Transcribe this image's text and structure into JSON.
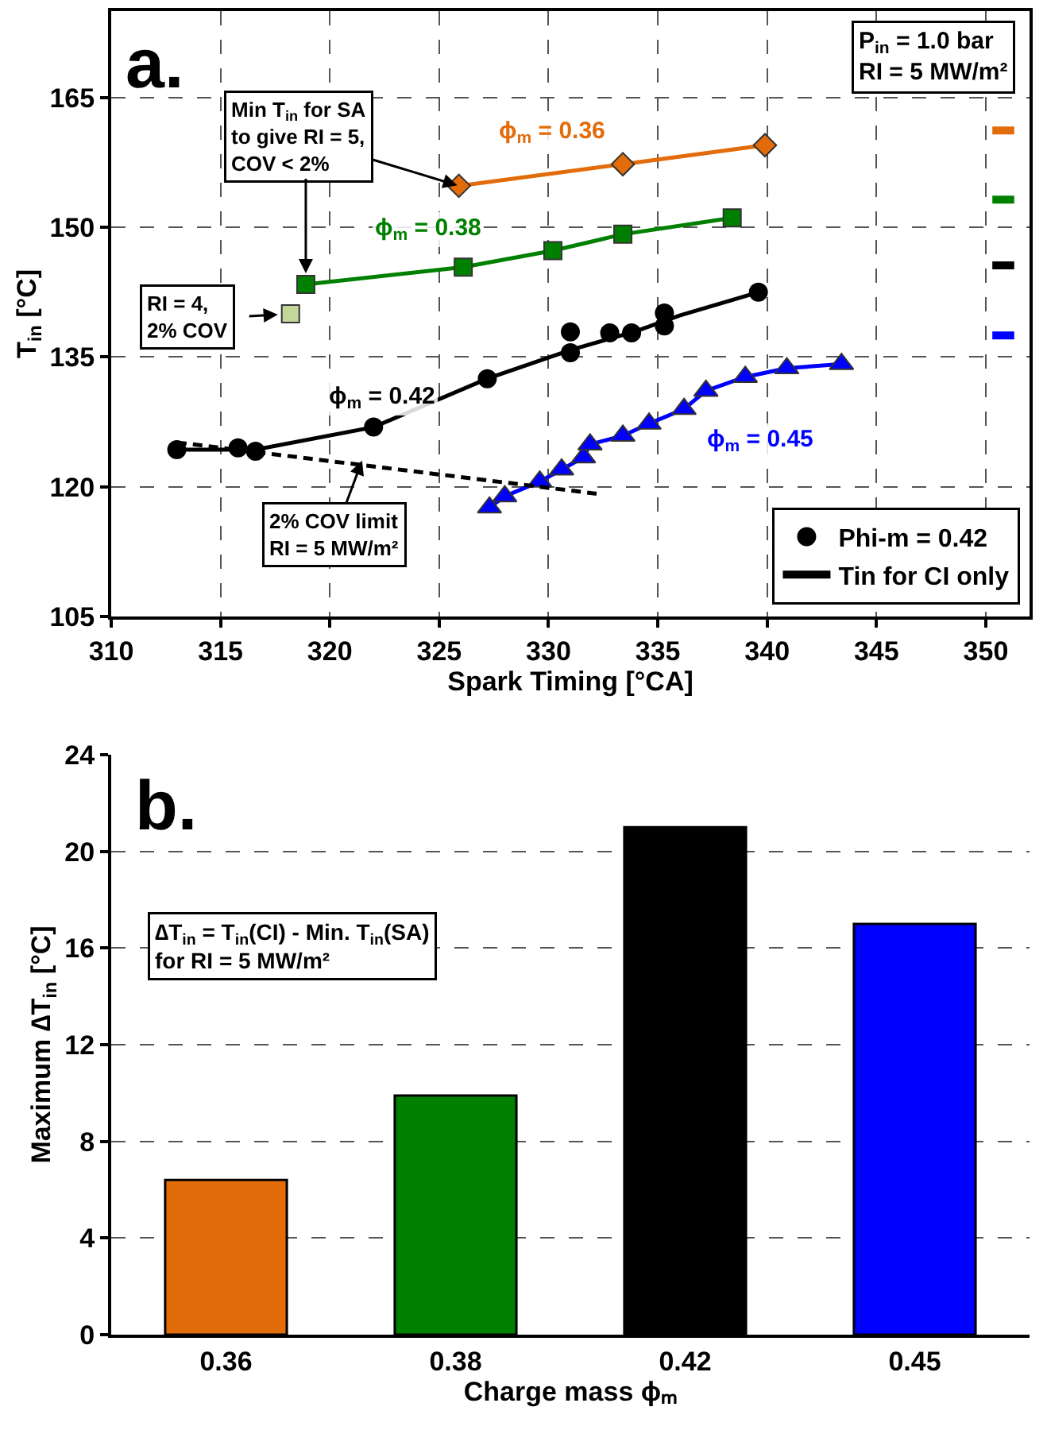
{
  "chart_data": [
    {
      "type": "scatter",
      "xlabel": "Spark Timing [°CA]",
      "ylabel": "T$_{in}$ [°C]",
      "xlim": [
        310,
        352
      ],
      "xticks": [
        310,
        315,
        320,
        325,
        330,
        335,
        340,
        345,
        350
      ],
      "ylim": [
        105,
        175
      ],
      "yticks": [
        105,
        120,
        135,
        150,
        165
      ],
      "grid": true,
      "legend": "bottom right",
      "annotations": [
        "a.",
        "P$_{in}$ = 1.0 bar\nRI = 5 MW/m²",
        {
          "text": "Min T$_{in}$ for SA\nto give RI = 5,\nCOV < 2%",
          "x": 325.9,
          "y": 154.8
        },
        "RI = 4,\n2% COV",
        {
          "text": "2% COV limit\nRI = 5 MW/m²",
          "x": 321.5,
          "y": 123.2
        }
      ],
      "series": [
        {
          "type": "line",
          "name": "ϕ$_{m}$ = 0.36",
          "color": "#e36c0a",
          "marker": "diamond",
          "x": [
            325.9,
            333.4,
            339.9
          ],
          "values": [
            154.8,
            157.3,
            159.5
          ]
        },
        {
          "type": "line",
          "name": "ϕ$_{m}$ = 0.38",
          "color": "#008000",
          "marker": "square",
          "x": [
            318.9,
            326.1,
            330.2,
            333.4,
            338.4
          ],
          "values": [
            143.4,
            145.4,
            147.3,
            149.2,
            151.1
          ]
        },
        {
          "type": "scatter",
          "color": "#c4d79b",
          "marker": "square",
          "x": [
            318.2
          ],
          "values": [
            140
          ]
        },
        {
          "type": "scatter",
          "name": "Phi-m = 0.42",
          "color": "#000000",
          "marker": "circle",
          "x": [
            313.0,
            315.8,
            316.6,
            322.0,
            327.2,
            331.0,
            331.0,
            332.8,
            333.8,
            335.3,
            335.3,
            339.6
          ],
          "values": [
            124.3,
            124.5,
            124.1,
            126.9,
            132.5,
            137.9,
            135.5,
            137.8,
            137.8,
            140.1,
            138.6,
            142.5
          ]
        },
        {
          "type": "line",
          "name": "ϕ$_{m}$ = 0.42",
          "color": "#000000",
          "marker": "none",
          "x": [
            313.0,
            316.6,
            322.0,
            327.2,
            331.0,
            334.0,
            336.0,
            339.6
          ],
          "values": [
            124.3,
            124.3,
            126.9,
            132.5,
            135.8,
            138.0,
            139.8,
            142.5
          ]
        },
        {
          "type": "line",
          "name": "ϕ$_{m}$ = 0.45",
          "color": "#0000ff",
          "marker": "triangle",
          "x": [
            327.3,
            328.0,
            329.6,
            330.6,
            331.6,
            331.9,
            333.4,
            334.6,
            336.2,
            337.2,
            339.0,
            340.9,
            343.4
          ],
          "values": [
            117.6,
            118.9,
            120.6,
            122.0,
            123.4,
            124.9,
            125.9,
            127.3,
            129.0,
            131.1,
            132.7,
            133.7,
            134.2
          ]
        },
        {
          "type": "line",
          "color": "#000000",
          "marker": "none",
          "line_style": "dashed",
          "x": [
            332.2,
            313.1
          ],
          "values": [
            119.2,
            125.1
          ]
        },
        {
          "type": "line",
          "name": "Tin for CI only",
          "color": "#000000",
          "marker": "none",
          "x": [
            350.3,
            351.3
          ],
          "values": [
            145.6,
            145.6
          ]
        },
        {
          "type": "line",
          "color": "#e36c0a",
          "marker": "none",
          "x": [
            350.3,
            351.3
          ],
          "values": [
            161.2,
            161.2
          ]
        },
        {
          "type": "line",
          "color": "#008000",
          "marker": "none",
          "x": [
            350.3,
            351.3
          ],
          "values": [
            153.2,
            153.2
          ]
        },
        {
          "type": "line",
          "color": "#0000ff",
          "marker": "none",
          "x": [
            350.3,
            351.3
          ],
          "values": [
            137.5,
            137.5
          ]
        }
      ]
    },
    {
      "type": "bar",
      "xlabel": "Charge mass ϕₘ",
      "ylabel": "Maximum ∆T$_{in}$ [°C]",
      "categories": [
        "0.36",
        "0.38",
        "0.42",
        "0.45"
      ],
      "values": [
        6.4,
        9.9,
        21.0,
        17.0
      ],
      "colors": [
        "#e36c0a",
        "#008000",
        "#000000",
        "#0000ff"
      ],
      "ylim": [
        0,
        24
      ],
      "yticks": [
        0,
        4,
        8,
        12,
        16,
        20,
        24
      ],
      "grid": "y",
      "legend": false,
      "annotations": [
        "b.",
        "∆T$_{in}$ = T$_{in}$(CI) - Min. T$_{in}$(SA)\nfor RI = 5 MW/m²"
      ]
    }
  ]
}
